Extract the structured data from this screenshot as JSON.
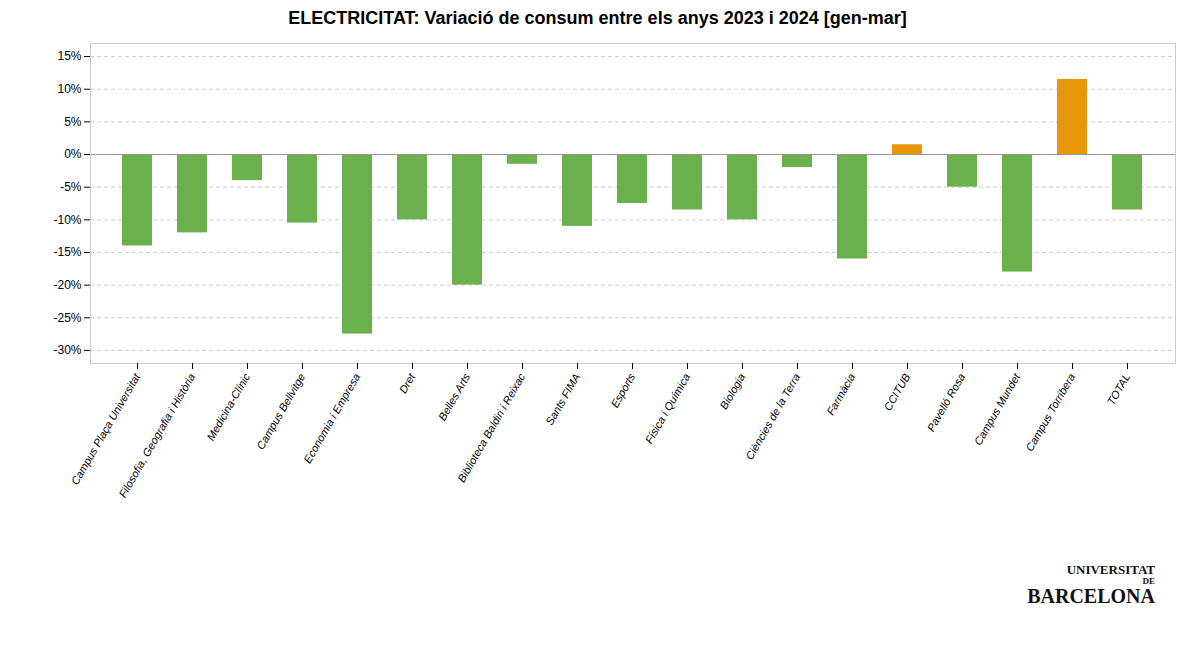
{
  "chart_data": {
    "type": "bar",
    "title": "ELECTRICITAT: Variació de consum entre els anys 2023 i 2024 [gen-mar]",
    "categories": [
      "Campus Plaça Universitat",
      "Filosofia, Geografia i Història",
      "Medicina-Clínic",
      "Campus Bellvitge",
      "Economia i Empresa",
      "Dret",
      "Belles Arts",
      "Biblioteca Baldiri i Reixac",
      "Sants FIMA",
      "Esports",
      "Física i Química",
      "Biologia",
      "Ciències de la Terra",
      "Farmàcia",
      "CCITUB",
      "Pavelló Rosa",
      "Campus Mundet",
      "Campus Torribera",
      "TOTAL"
    ],
    "values": [
      -14.0,
      -12.0,
      -4.0,
      -10.5,
      -27.5,
      -10.0,
      -20.0,
      -1.5,
      -11.0,
      -7.5,
      -8.5,
      -10.0,
      -2.0,
      -16.0,
      1.5,
      -5.0,
      -18.0,
      11.5,
      -8.5
    ],
    "colors": [
      "#6ab04c",
      "#6ab04c",
      "#6ab04c",
      "#6ab04c",
      "#6ab04c",
      "#6ab04c",
      "#6ab04c",
      "#6ab04c",
      "#6ab04c",
      "#6ab04c",
      "#6ab04c",
      "#6ab04c",
      "#6ab04c",
      "#6ab04c",
      "#e8970a",
      "#6ab04c",
      "#6ab04c",
      "#e8970a",
      "#6ab04c"
    ],
    "ylim": [
      -32,
      17
    ],
    "yticks": [
      {
        "value": -30,
        "label": "-30%"
      },
      {
        "value": -25,
        "label": "-25%"
      },
      {
        "value": -20,
        "label": "-20%"
      },
      {
        "value": -15,
        "label": "-15%"
      },
      {
        "value": -10,
        "label": "-10%"
      },
      {
        "value": -5,
        "label": "-5%"
      },
      {
        "value": 0,
        "label": "0%"
      },
      {
        "value": 5,
        "label": "5%"
      },
      {
        "value": 10,
        "label": "10%"
      },
      {
        "value": 15,
        "label": "15%"
      }
    ],
    "grid": true,
    "annotations": [
      "UNIVERSITAT",
      "DE",
      "BARCELONA"
    ]
  }
}
